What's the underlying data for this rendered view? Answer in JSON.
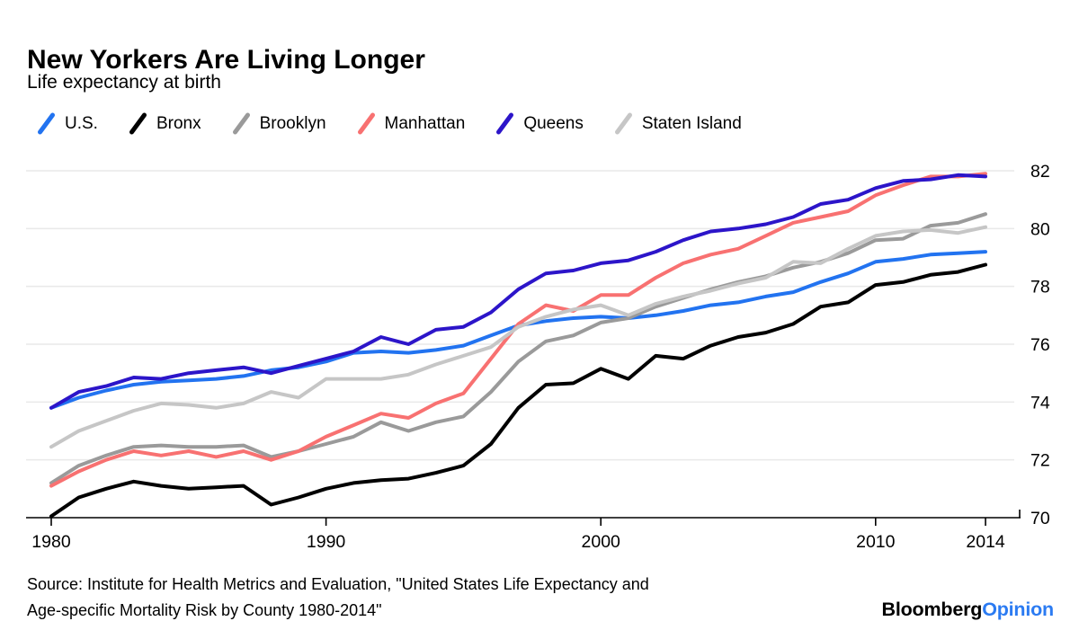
{
  "header": {
    "title": "New Yorkers Are Living Longer",
    "subtitle": "Life expectancy at birth"
  },
  "source": {
    "line1": "Source: Institute for Health Metrics and Evaluation, \"United States Life Expectancy and",
    "line2": "Age-specific Mortality Risk by County 1980-2014\""
  },
  "logo": {
    "black": "Bloomberg",
    "blue": "Opinion",
    "blue_color": "#2b7bf2"
  },
  "chart_data": {
    "type": "line",
    "title": "New Yorkers Are Living Longer",
    "subtitle": "Life expectancy at birth",
    "xlabel": "",
    "ylabel": "",
    "x": [
      1980,
      1981,
      1982,
      1983,
      1984,
      1985,
      1986,
      1987,
      1988,
      1989,
      1990,
      1991,
      1992,
      1993,
      1994,
      1995,
      1996,
      1997,
      1998,
      1999,
      2000,
      2001,
      2002,
      2003,
      2004,
      2005,
      2006,
      2007,
      2008,
      2009,
      2010,
      2011,
      2012,
      2013,
      2014
    ],
    "xticks": [
      1980,
      1990,
      2000,
      2010,
      2014
    ],
    "ylim": [
      70,
      82
    ],
    "yticks": [
      70,
      72,
      74,
      76,
      78,
      80,
      82
    ],
    "grid": true,
    "legend_position": "top",
    "grid_color": "#e9e9e9",
    "series": [
      {
        "name": "U.S.",
        "color": "#2273f0",
        "values": [
          73.8,
          74.15,
          74.4,
          74.6,
          74.7,
          74.75,
          74.8,
          74.9,
          75.1,
          75.2,
          75.4,
          75.7,
          75.75,
          75.7,
          75.8,
          75.95,
          76.3,
          76.65,
          76.8,
          76.9,
          76.95,
          76.9,
          77.0,
          77.15,
          77.35,
          77.45,
          77.65,
          77.8,
          78.15,
          78.45,
          78.85,
          78.95,
          79.1,
          79.15,
          79.2
        ]
      },
      {
        "name": "Bronx",
        "color": "#000000",
        "values": [
          70.05,
          70.7,
          71.0,
          71.25,
          71.1,
          71.0,
          71.05,
          71.1,
          70.45,
          70.7,
          71.0,
          71.2,
          71.3,
          71.35,
          71.55,
          71.8,
          72.55,
          73.8,
          74.6,
          74.65,
          75.15,
          74.8,
          75.6,
          75.5,
          75.95,
          76.25,
          76.4,
          76.7,
          77.3,
          77.45,
          78.05,
          78.15,
          78.4,
          78.5,
          78.75
        ]
      },
      {
        "name": "Brooklyn",
        "color": "#9a9a9a",
        "values": [
          71.2,
          71.8,
          72.15,
          72.45,
          72.5,
          72.45,
          72.45,
          72.5,
          72.1,
          72.3,
          72.55,
          72.8,
          73.3,
          73.0,
          73.3,
          73.5,
          74.35,
          75.4,
          76.1,
          76.3,
          76.75,
          76.9,
          77.3,
          77.6,
          77.9,
          78.15,
          78.35,
          78.65,
          78.85,
          79.15,
          79.6,
          79.65,
          80.1,
          80.2,
          80.5
        ]
      },
      {
        "name": "Manhattan",
        "color": "#f87171",
        "values": [
          71.1,
          71.6,
          72.0,
          72.3,
          72.15,
          72.3,
          72.1,
          72.3,
          72.0,
          72.3,
          72.8,
          73.2,
          73.6,
          73.45,
          73.95,
          74.3,
          75.5,
          76.7,
          77.35,
          77.15,
          77.7,
          77.7,
          78.3,
          78.8,
          79.1,
          79.3,
          79.75,
          80.2,
          80.4,
          80.6,
          81.15,
          81.5,
          81.8,
          81.8,
          81.9
        ]
      },
      {
        "name": "Queens",
        "color": "#2c15c9",
        "values": [
          73.8,
          74.35,
          74.55,
          74.85,
          74.8,
          75.0,
          75.1,
          75.2,
          75.0,
          75.25,
          75.5,
          75.75,
          76.25,
          76.0,
          76.5,
          76.6,
          77.1,
          77.9,
          78.45,
          78.55,
          78.8,
          78.9,
          79.2,
          79.6,
          79.9,
          80.0,
          80.15,
          80.4,
          80.85,
          81.0,
          81.4,
          81.65,
          81.7,
          81.85,
          81.8
        ]
      },
      {
        "name": "Staten Island",
        "color": "#c6c6c6",
        "values": [
          72.45,
          73.0,
          73.35,
          73.7,
          73.95,
          73.9,
          73.8,
          73.95,
          74.35,
          74.15,
          74.8,
          74.8,
          74.8,
          74.95,
          75.3,
          75.6,
          75.9,
          76.6,
          76.95,
          77.2,
          77.35,
          77.0,
          77.4,
          77.65,
          77.85,
          78.1,
          78.3,
          78.85,
          78.8,
          79.3,
          79.75,
          79.9,
          79.95,
          79.85,
          80.05
        ]
      }
    ]
  }
}
